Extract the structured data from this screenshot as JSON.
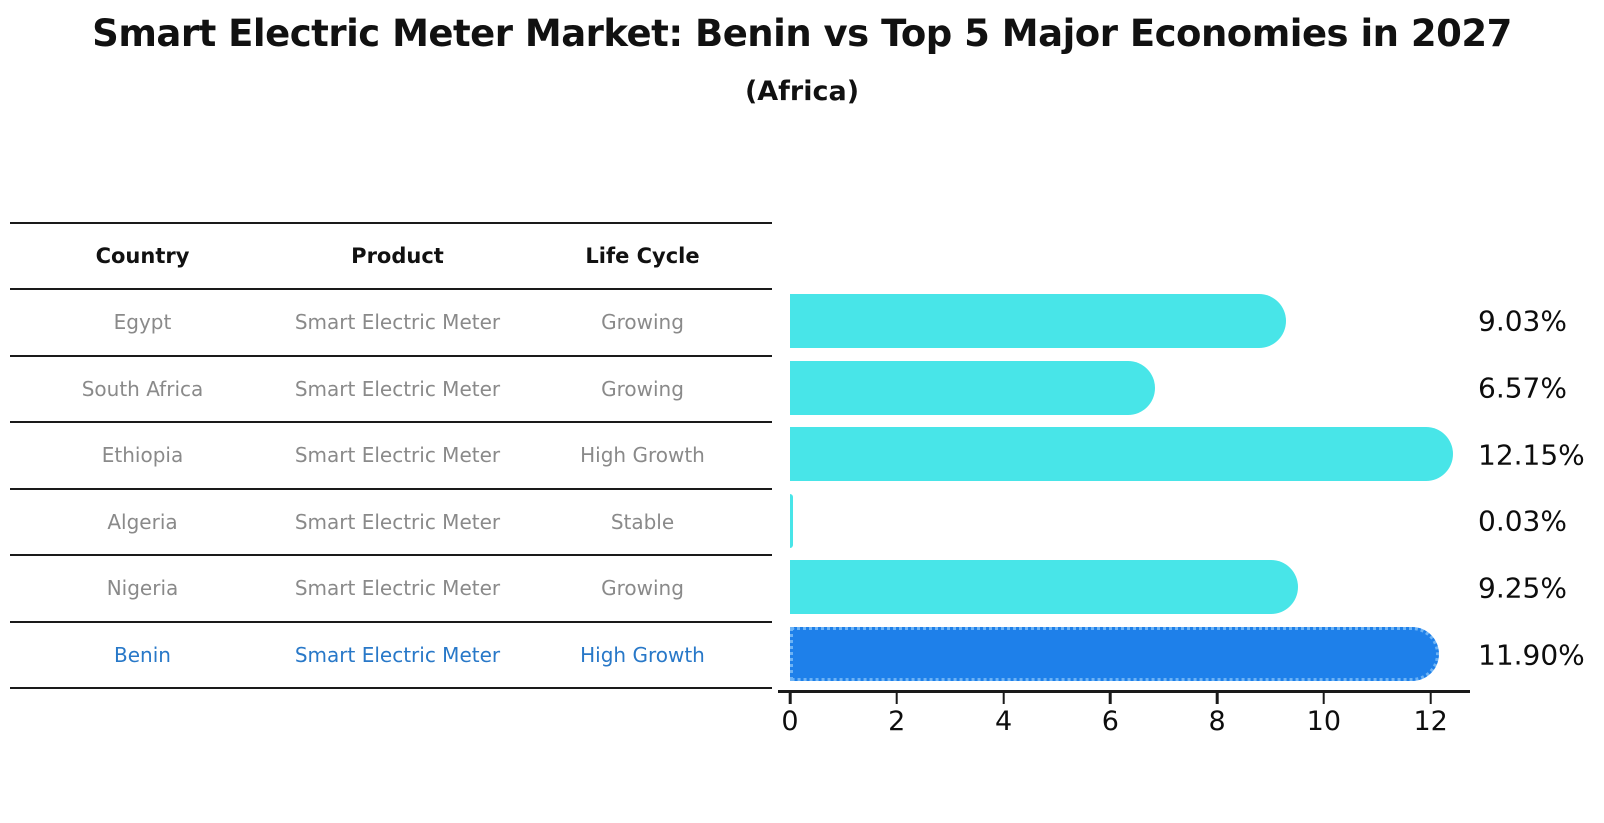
{
  "title": "Smart Electric Meter Market: Benin vs Top 5 Major Economies in 2027",
  "subtitle": "(Africa)",
  "table": {
    "headers": [
      "Country",
      "Product",
      "Life Cycle"
    ],
    "rows": [
      {
        "country": "Egypt",
        "product": "Smart Electric Meter",
        "life_cycle": "Growing",
        "highlight": false
      },
      {
        "country": "South Africa",
        "product": "Smart Electric Meter",
        "life_cycle": "Growing",
        "highlight": false
      },
      {
        "country": "Ethiopia",
        "product": "Smart Electric Meter",
        "life_cycle": "High Growth",
        "highlight": false
      },
      {
        "country": "Algeria",
        "product": "Smart Electric Meter",
        "life_cycle": "Stable",
        "highlight": false
      },
      {
        "country": "Nigeria",
        "product": "Smart Electric Meter",
        "life_cycle": "Growing",
        "highlight": false
      },
      {
        "country": "Benin",
        "product": "Smart Electric Meter",
        "life_cycle": "High Growth",
        "highlight": true
      }
    ]
  },
  "chart_data": {
    "type": "bar",
    "orientation": "horizontal",
    "title": "Smart Electric Meter Market: Benin vs Top 5 Major Economies in 2027",
    "subtitle": "(Africa)",
    "categories": [
      "Egypt",
      "South Africa",
      "Ethiopia",
      "Algeria",
      "Nigeria",
      "Benin"
    ],
    "values": [
      9.03,
      6.57,
      12.15,
      0.03,
      9.25,
      11.9
    ],
    "labels": [
      "9.03%",
      "6.57%",
      "12.15%",
      "0.03%",
      "9.25%",
      "11.90%"
    ],
    "highlight_index": 5,
    "xlim": [
      0,
      12.7
    ],
    "x_ticks": [
      0,
      2,
      4,
      6,
      8,
      10,
      12
    ],
    "grid": false,
    "legend": false,
    "bar_color": "#48e5e8",
    "highlight_color": "#1e80ea",
    "highlight_edge_color": "#6db3f5",
    "label_color": "#0d0d0d",
    "row_text_color": "#8a8a8a",
    "highlight_text_color": "#2878c8",
    "line_color": "#1a1a1a"
  }
}
